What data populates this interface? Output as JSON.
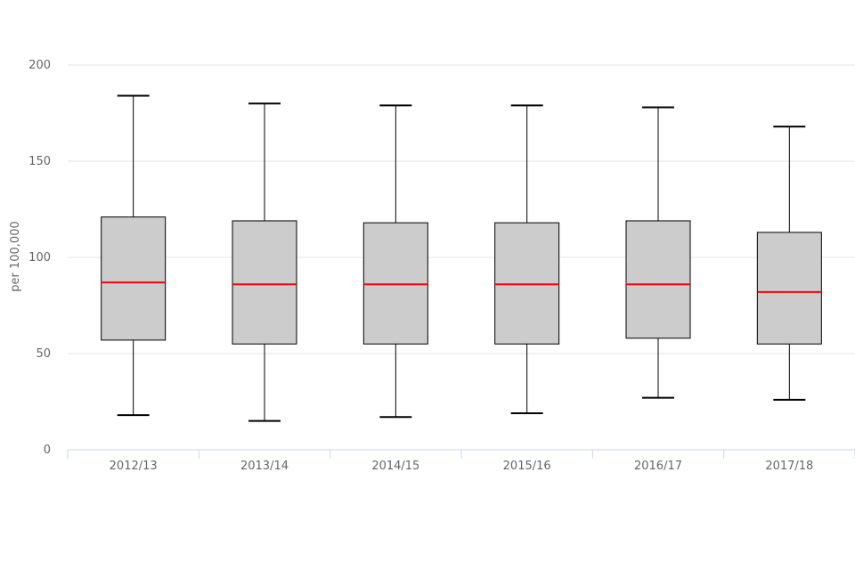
{
  "chart_data": {
    "type": "boxplot",
    "title": "",
    "xlabel": "",
    "ylabel": "per 100,000",
    "ylim": [
      0,
      200
    ],
    "yticks": [
      0,
      50,
      100,
      150,
      200
    ],
    "grid": true,
    "legend": "none",
    "categories": [
      "2012/13",
      "2013/14",
      "2014/15",
      "2015/16",
      "2016/17",
      "2017/18"
    ],
    "series": [
      {
        "boxes": [
          {
            "low": 18,
            "q1": 57,
            "median": 87,
            "q3": 121,
            "high": 184
          },
          {
            "low": 15,
            "q1": 55,
            "median": 86,
            "q3": 119,
            "high": 180
          },
          {
            "low": 17,
            "q1": 55,
            "median": 86,
            "q3": 118,
            "high": 179
          },
          {
            "low": 19,
            "q1": 55,
            "median": 86,
            "q3": 118,
            "high": 179
          },
          {
            "low": 27,
            "q1": 58,
            "median": 86,
            "q3": 119,
            "high": 178
          },
          {
            "low": 26,
            "q1": 55,
            "median": 82,
            "q3": 113,
            "high": 168
          }
        ]
      }
    ],
    "colors": {
      "box_fill": "#cccccc",
      "box_stroke": "#000000",
      "median": "#ff0000",
      "grid": "#e6e6e6",
      "axis": "#ccd6eb",
      "text": "#666666"
    }
  }
}
